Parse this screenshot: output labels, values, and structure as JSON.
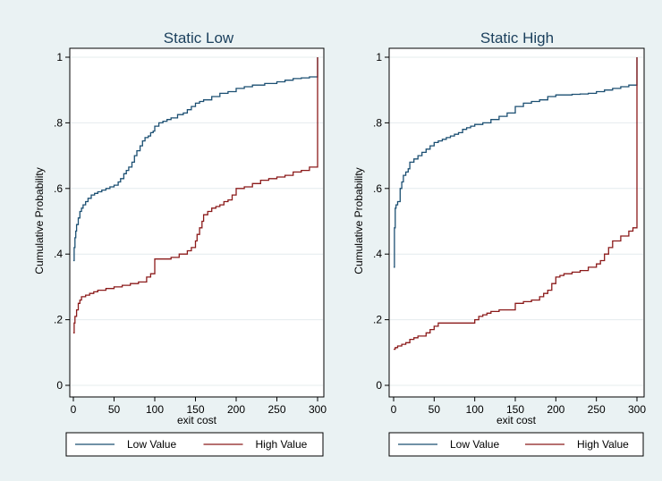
{
  "figure": {
    "background": "#eaf2f3",
    "plot_bg": "#ffffff",
    "grid_color": "#e4ecee",
    "series_colors": {
      "low": "#1b4f72",
      "high": "#8b1a1a"
    }
  },
  "chart_data": [
    {
      "type": "line",
      "step": true,
      "title": "Static Low",
      "xlabel": "exit cost",
      "ylabel": "Cumulative Probability",
      "xlim": [
        0,
        300
      ],
      "ylim": [
        0,
        1
      ],
      "xticks": [
        0,
        50,
        100,
        150,
        200,
        250,
        300
      ],
      "yticks": [
        0,
        0.2,
        0.4,
        0.6,
        0.8,
        1
      ],
      "ytick_labels": [
        "0",
        ".2",
        ".4",
        ".6",
        ".8",
        "1"
      ],
      "grid": true,
      "legend": {
        "position": "bottom",
        "entries": [
          "Low Value",
          "High Value"
        ]
      },
      "series": [
        {
          "name": "Low Value",
          "x": [
            0,
            1,
            2,
            3,
            4,
            6,
            8,
            10,
            12,
            15,
            18,
            22,
            26,
            30,
            35,
            40,
            45,
            50,
            55,
            58,
            62,
            65,
            68,
            72,
            75,
            78,
            82,
            85,
            88,
            92,
            95,
            98,
            100,
            105,
            110,
            115,
            120,
            128,
            135,
            140,
            145,
            150,
            155,
            160,
            170,
            180,
            190,
            200,
            210,
            220,
            235,
            250,
            260,
            270,
            280,
            290,
            300,
            300
          ],
          "y": [
            0.38,
            0.42,
            0.45,
            0.47,
            0.49,
            0.51,
            0.53,
            0.54,
            0.55,
            0.56,
            0.57,
            0.58,
            0.585,
            0.59,
            0.595,
            0.6,
            0.605,
            0.61,
            0.62,
            0.63,
            0.645,
            0.655,
            0.665,
            0.68,
            0.7,
            0.715,
            0.73,
            0.745,
            0.755,
            0.76,
            0.77,
            0.775,
            0.79,
            0.8,
            0.805,
            0.81,
            0.815,
            0.825,
            0.83,
            0.84,
            0.85,
            0.86,
            0.865,
            0.87,
            0.88,
            0.89,
            0.895,
            0.905,
            0.91,
            0.915,
            0.92,
            0.925,
            0.93,
            0.935,
            0.937,
            0.94,
            0.94,
            1.0
          ]
        },
        {
          "name": "High Value",
          "x": [
            0,
            1,
            2,
            4,
            6,
            8,
            10,
            15,
            20,
            25,
            30,
            35,
            40,
            50,
            60,
            70,
            80,
            90,
            95,
            100,
            110,
            120,
            130,
            140,
            145,
            150,
            152,
            155,
            158,
            160,
            165,
            170,
            175,
            180,
            185,
            190,
            195,
            200,
            210,
            220,
            230,
            240,
            250,
            260,
            270,
            280,
            290,
            300,
            300
          ],
          "y": [
            0.16,
            0.19,
            0.21,
            0.23,
            0.25,
            0.26,
            0.27,
            0.275,
            0.28,
            0.285,
            0.29,
            0.29,
            0.295,
            0.3,
            0.305,
            0.31,
            0.315,
            0.33,
            0.34,
            0.385,
            0.385,
            0.39,
            0.4,
            0.41,
            0.42,
            0.44,
            0.46,
            0.48,
            0.5,
            0.52,
            0.53,
            0.54,
            0.545,
            0.55,
            0.56,
            0.565,
            0.58,
            0.6,
            0.605,
            0.615,
            0.625,
            0.63,
            0.635,
            0.64,
            0.65,
            0.655,
            0.665,
            0.67,
            1.0
          ]
        }
      ]
    },
    {
      "type": "line",
      "step": true,
      "title": "Static High",
      "xlabel": "exit cost",
      "ylabel": "Cumulative Probability",
      "xlim": [
        0,
        300
      ],
      "ylim": [
        0,
        1
      ],
      "xticks": [
        0,
        50,
        100,
        150,
        200,
        250,
        300
      ],
      "yticks": [
        0,
        0.2,
        0.4,
        0.6,
        0.8,
        1
      ],
      "ytick_labels": [
        "0",
        ".2",
        ".4",
        ".6",
        ".8",
        "1"
      ],
      "grid": true,
      "legend": {
        "position": "bottom",
        "entries": [
          "Low Value",
          "High Value"
        ]
      },
      "series": [
        {
          "name": "Low Value",
          "x": [
            0,
            1,
            2,
            3,
            5,
            8,
            10,
            12,
            15,
            18,
            20,
            25,
            30,
            35,
            40,
            45,
            50,
            55,
            60,
            65,
            70,
            75,
            80,
            85,
            90,
            95,
            100,
            110,
            120,
            130,
            140,
            150,
            160,
            170,
            180,
            190,
            200,
            210,
            220,
            230,
            240,
            250,
            260,
            270,
            280,
            290,
            300,
            300
          ],
          "y": [
            0.36,
            0.48,
            0.54,
            0.55,
            0.56,
            0.6,
            0.62,
            0.64,
            0.65,
            0.66,
            0.68,
            0.69,
            0.7,
            0.71,
            0.72,
            0.73,
            0.74,
            0.745,
            0.75,
            0.755,
            0.76,
            0.765,
            0.77,
            0.78,
            0.785,
            0.79,
            0.795,
            0.8,
            0.81,
            0.82,
            0.83,
            0.85,
            0.86,
            0.865,
            0.87,
            0.88,
            0.885,
            0.885,
            0.887,
            0.888,
            0.89,
            0.895,
            0.9,
            0.905,
            0.91,
            0.915,
            0.92,
            1.0
          ]
        },
        {
          "name": "High Value",
          "x": [
            0,
            2,
            5,
            10,
            15,
            20,
            25,
            30,
            40,
            45,
            50,
            55,
            60,
            70,
            80,
            90,
            100,
            105,
            110,
            115,
            120,
            130,
            140,
            150,
            160,
            170,
            180,
            185,
            190,
            195,
            200,
            205,
            210,
            220,
            230,
            240,
            250,
            255,
            260,
            265,
            270,
            280,
            290,
            295,
            300,
            300
          ],
          "y": [
            0.11,
            0.115,
            0.12,
            0.125,
            0.13,
            0.14,
            0.145,
            0.15,
            0.16,
            0.17,
            0.18,
            0.19,
            0.19,
            0.19,
            0.19,
            0.19,
            0.2,
            0.21,
            0.215,
            0.22,
            0.225,
            0.23,
            0.23,
            0.25,
            0.255,
            0.26,
            0.27,
            0.28,
            0.29,
            0.31,
            0.33,
            0.335,
            0.34,
            0.345,
            0.35,
            0.36,
            0.37,
            0.38,
            0.4,
            0.42,
            0.44,
            0.455,
            0.47,
            0.48,
            0.5,
            1.0
          ]
        }
      ]
    }
  ]
}
